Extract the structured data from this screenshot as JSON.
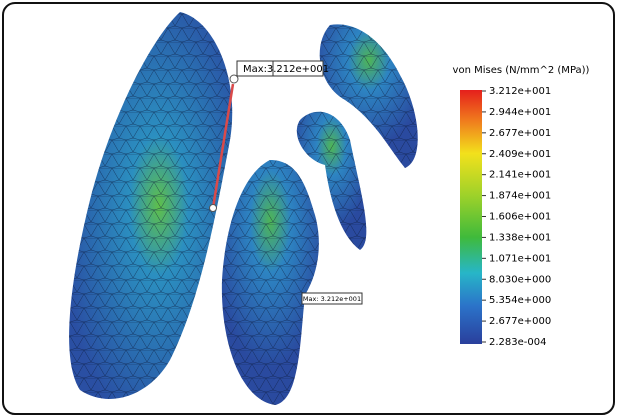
{
  "legend": {
    "title": "von Mises (N/mm^2 (MPa))",
    "labels": [
      "3.212e+001",
      "2.944e+001",
      "2.677e+001",
      "2.409e+001",
      "2.141e+001",
      "1.874e+001",
      "1.606e+001",
      "1.338e+001",
      "1.071e+001",
      "8.030e+000",
      "5.354e+000",
      "2.677e+000",
      "2.283e-004"
    ]
  },
  "annotations": {
    "main": {
      "label": "Max:",
      "value": "3.212e+001"
    },
    "secondary": "Max: 3.212e+001"
  }
}
